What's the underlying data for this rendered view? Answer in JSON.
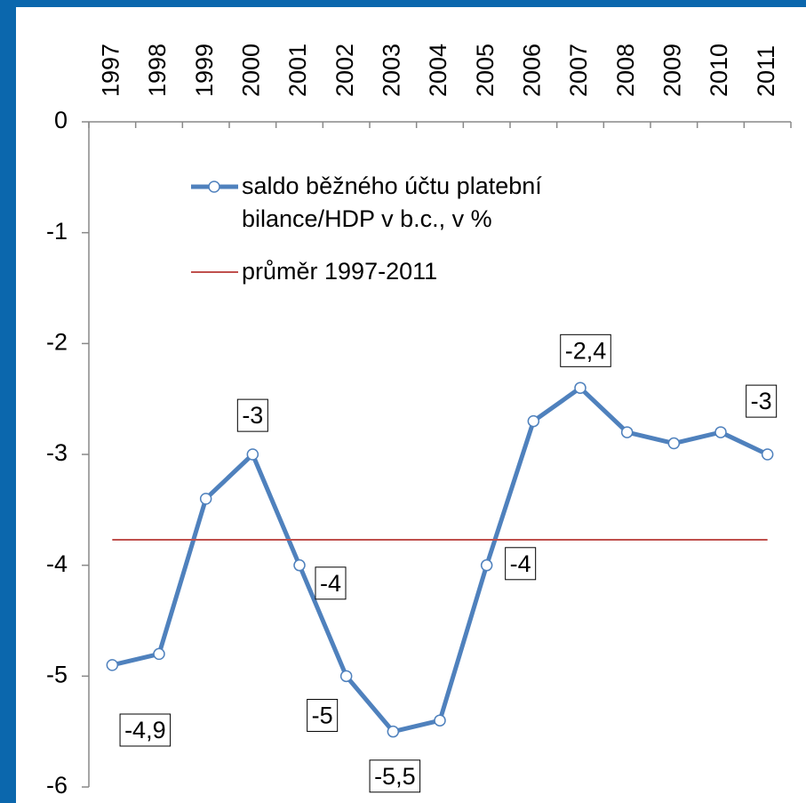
{
  "chart_data": {
    "type": "line",
    "categories": [
      "1997",
      "1998",
      "1999",
      "2000",
      "2001",
      "2002",
      "2003",
      "2004",
      "2005",
      "2006",
      "2007",
      "2008",
      "2009",
      "2010",
      "2011"
    ],
    "series": [
      {
        "name": "saldo běžného účtu platební bilance/HDP v b.c., v %",
        "color": "#4f81bd",
        "values": [
          -4.9,
          -4.8,
          -3.4,
          -3,
          -4,
          -5,
          -5.5,
          -5.4,
          -4,
          -2.7,
          -2.4,
          -2.8,
          -2.9,
          -2.8,
          -3
        ],
        "value_labels": [
          "-4,9",
          null,
          null,
          "-3",
          "-4",
          "-5",
          "-5,5",
          null,
          "-4",
          null,
          "-2,4",
          null,
          null,
          null,
          "-3"
        ]
      },
      {
        "name": "průměr 1997-2011",
        "color": "#c0504d",
        "values": [
          -3.77,
          -3.77,
          -3.77,
          -3.77,
          -3.77,
          -3.77,
          -3.77,
          -3.77,
          -3.77,
          -3.77,
          -3.77,
          -3.77,
          -3.77,
          -3.77,
          -3.77
        ]
      }
    ],
    "ylim": [
      -6,
      0
    ],
    "yticks": [
      0,
      -1,
      -2,
      -3,
      -4,
      -5,
      -6
    ]
  }
}
